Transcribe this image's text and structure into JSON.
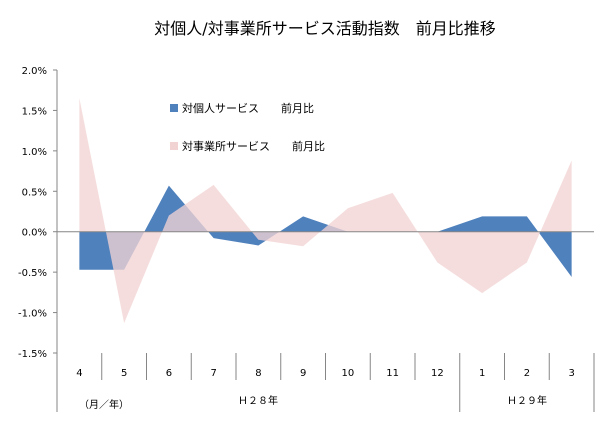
{
  "chart_data": {
    "type": "area",
    "title": "対個人/対事業所サービス活動指数　前月比推移",
    "categories": [
      "4",
      "5",
      "6",
      "7",
      "8",
      "9",
      "10",
      "11",
      "12",
      "1",
      "2",
      "3"
    ],
    "unit_label": "（月／年）",
    "year_groups": [
      {
        "label": "Ｈ２８年",
        "from": "4",
        "to": "12"
      },
      {
        "label": "Ｈ２９年",
        "from": "1",
        "to": "3"
      }
    ],
    "y_ticks": [
      "2.0%",
      "1.5%",
      "1.0%",
      "0.5%",
      "0.0%",
      "-0.5%",
      "-1.0%",
      "-1.5%"
    ],
    "ylim": [
      -1.5,
      2.0
    ],
    "series": [
      {
        "name": "対個人サービス　　前月比",
        "color": "#4f81bd",
        "values": [
          -0.47,
          -0.47,
          0.57,
          -0.08,
          -0.17,
          0.19,
          0.0,
          0.0,
          0.0,
          0.19,
          0.19,
          -0.56
        ]
      },
      {
        "name": "対事業所サービス　　前月比",
        "color": "#f2d3d3",
        "values": [
          1.65,
          -1.13,
          0.2,
          0.58,
          -0.1,
          -0.18,
          0.29,
          0.48,
          -0.38,
          -0.76,
          -0.38,
          0.88
        ]
      }
    ],
    "legend_position": "inside top-center",
    "grid": false
  }
}
